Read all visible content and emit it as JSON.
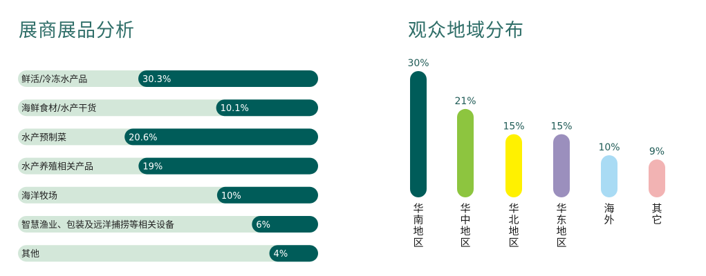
{
  "headings": {
    "left": "展商展品分析",
    "right": "观众地域分布"
  },
  "colors": {
    "title": "#2f6e68",
    "track": "#d3e7d9",
    "bar": "#005c59",
    "value_text_dark": "#1e5a55"
  },
  "chart_data": [
    {
      "type": "bar",
      "orientation": "horizontal",
      "title": "展商展品分析",
      "categories": [
        "鲜活/冷冻水产品",
        "海鲜食材/水产干货",
        "水产预制菜",
        "水产养殖相关产品",
        "海洋牧场",
        "智慧渔业、包装及远洋捕捞等相关设备",
        "其他"
      ],
      "values": [
        30.3,
        10.1,
        20.6,
        19,
        10,
        6,
        4
      ],
      "labels": [
        "30.3%",
        "10.1%",
        "20.6%",
        "19%",
        "10%",
        "6%",
        "4%"
      ],
      "grid": false
    },
    {
      "type": "bar",
      "orientation": "vertical",
      "title": "观众地域分布",
      "categories": [
        "华南地区",
        "华中地区",
        "华北地区",
        "华东地区",
        "海外",
        "其它"
      ],
      "values": [
        30,
        21,
        15,
        15,
        10,
        9
      ],
      "labels": [
        "30%",
        "21%",
        "15%",
        "15%",
        "10%",
        "9%"
      ],
      "colors": [
        "#005c59",
        "#8dc53f",
        "#fff100",
        "#9b8fbd",
        "#a9dbf4",
        "#f2b3b3"
      ],
      "grid": false
    }
  ]
}
